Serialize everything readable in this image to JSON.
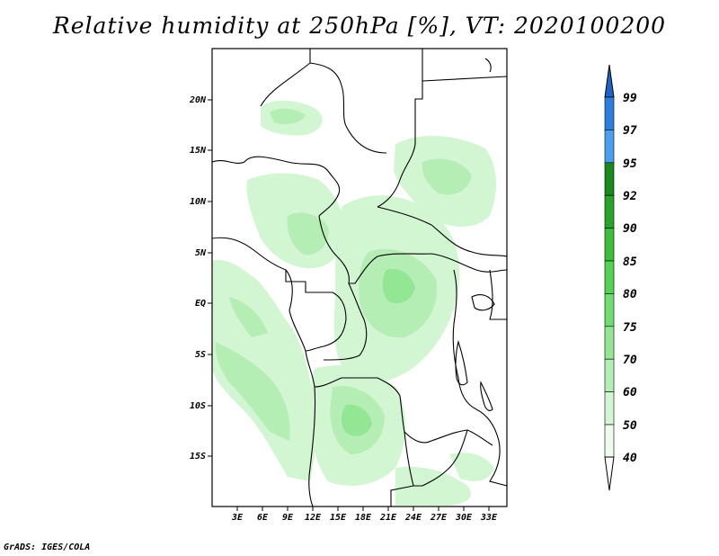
{
  "title": "Relative humidity at 250hPa [%], VT: 2020100200",
  "footer": "GrADS: IGES/COLA",
  "map": {
    "lat_labels": [
      "20N",
      "15N",
      "10N",
      "5N",
      "EQ",
      "5S",
      "10S",
      "15S"
    ],
    "lon_labels": [
      "3E",
      "6E",
      "9E",
      "12E",
      "15E",
      "18E",
      "21E",
      "24E",
      "27E",
      "30E",
      "33E"
    ]
  },
  "colorbar": {
    "labels": [
      "99",
      "97",
      "95",
      "92",
      "90",
      "85",
      "80",
      "75",
      "70",
      "60",
      "50",
      "40"
    ],
    "colors": [
      "#1e63c8",
      "#2c7ede",
      "#4aa0f0",
      "#1a8a1a",
      "#28a428",
      "#3cc03c",
      "#52d452",
      "#70dc70",
      "#93e693",
      "#b4eeb4",
      "#d2f6d2",
      "#eefcee"
    ]
  }
}
